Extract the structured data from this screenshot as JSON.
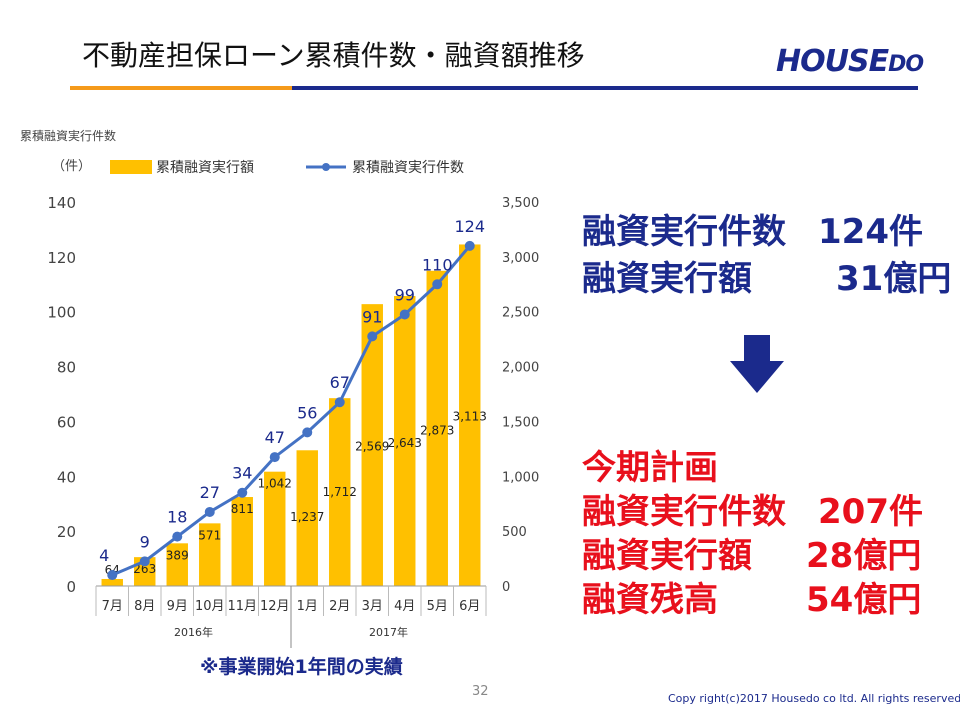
{
  "header": {
    "title": "不動産担保ローン累積件数・融資額推移",
    "logo_text": "HOUSEDO"
  },
  "chart_data": {
    "type": "bar+line",
    "categories": [
      "7月",
      "8月",
      "9月",
      "10月",
      "11月",
      "12月",
      "1月",
      "2月",
      "3月",
      "4月",
      "5月",
      "6月"
    ],
    "year_groups": [
      {
        "label": "2016年",
        "from": 0,
        "to": 5
      },
      {
        "label": "2017年",
        "from": 6,
        "to": 11
      }
    ],
    "y_left_title": "累積融資実行件数",
    "y_left_unit": "（件）",
    "y_left_lim": [
      0,
      140
    ],
    "y_left_ticks": [
      0,
      20,
      40,
      60,
      80,
      100,
      120,
      140
    ],
    "y_right_lim": [
      0,
      3500
    ],
    "y_right_ticks": [
      "0",
      "500",
      "1,000",
      "1,500",
      "2,000",
      "2,500",
      "3,000",
      "3,500"
    ],
    "series": [
      {
        "name": "累積融資実行額",
        "kind": "bar",
        "axis": "right",
        "color": "#ffc000",
        "values": [
          64,
          263,
          389,
          571,
          811,
          1042,
          1237,
          1712,
          2569,
          2643,
          2873,
          3113
        ],
        "labels": [
          "64",
          "263",
          "389",
          "571",
          "811",
          "1,042",
          "1,237",
          "1,712",
          "2,569",
          "2,643",
          "2,873",
          "3,113"
        ]
      },
      {
        "name": "累積融資実行件数",
        "kind": "line",
        "axis": "left",
        "color": "#4472c4",
        "values": [
          4,
          9,
          18,
          27,
          34,
          47,
          56,
          67,
          91,
          99,
          110,
          124
        ],
        "labels": [
          "4",
          "9",
          "18",
          "27",
          "34",
          "47",
          "56",
          "67",
          "91",
          "99",
          "110",
          "124"
        ]
      }
    ],
    "grid": false,
    "legend_position": "top"
  },
  "summary": {
    "current": [
      {
        "label": "融資実行件数",
        "value": "124件"
      },
      {
        "label": "融資実行額",
        "value": "31億円"
      }
    ],
    "plan_title": "今期計画",
    "plan": [
      {
        "label": "融資実行件数",
        "value": "207件"
      },
      {
        "label": "融資実行額",
        "value": "28億円"
      },
      {
        "label": "融資残高",
        "value": "54億円"
      }
    ],
    "arrow_color": "#1b2a8c",
    "current_color": "#1b2a8c",
    "plan_color": "#e8101c"
  },
  "footer": {
    "note": "※事業開始1年間の実績",
    "page_number": "32",
    "copyright": "Copy right(c)2017 Housedo co ltd. All rights reserved"
  }
}
